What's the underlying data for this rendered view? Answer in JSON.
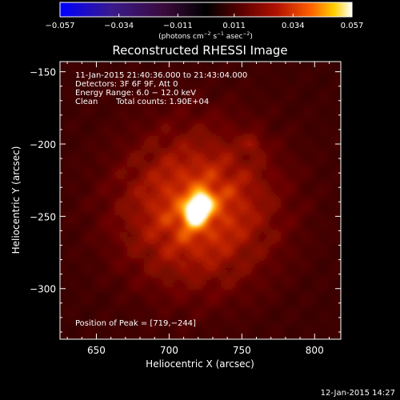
{
  "chart_data": {
    "type": "heatmap",
    "title": "Reconstructed RHESSI Image",
    "xlabel": "Heliocentric X (arcsec)",
    "ylabel": "Heliocentric Y (arcsec)",
    "xlim": [
      625,
      818
    ],
    "ylim": [
      -335,
      -143
    ],
    "x_ticks": [
      650,
      700,
      750,
      800
    ],
    "y_ticks": [
      -150,
      -200,
      -250,
      -300
    ],
    "x_tick_labels": [
      "650",
      "700",
      "750",
      "800"
    ],
    "y_tick_labels": [
      "−150",
      "−200",
      "−250",
      "−300"
    ],
    "colorbar": {
      "min": -0.057,
      "max": 0.057,
      "ticks": [
        -0.057,
        -0.034,
        -0.011,
        0.011,
        0.034,
        0.057
      ],
      "tick_labels": [
        "−0.057",
        "−0.034",
        "−0.011",
        "0.011",
        "0.034",
        "0.057"
      ],
      "units_label": "(photons cm",
      "units_exp1": "−2",
      "units_mid": " s",
      "units_exp2": "−1",
      "units_mid2": " asec",
      "units_exp3": "−2",
      "units_end": ")",
      "colormap": "rhessi-temperature"
    },
    "peak": [
      719,
      -244
    ],
    "sources": [
      {
        "x": 719,
        "y": -244,
        "intensity": 0.057
      },
      {
        "x": 757,
        "y": -199,
        "intensity": 0.012
      }
    ],
    "annotations": {
      "time_range": "11-Jan-2015 21:40:36.000 to 21:43:04.000",
      "detectors": "Detectors: 3F 6F 9F, Att 0",
      "energy": "Energy Range: 6.0 − 12.0 keV",
      "method": "Clean",
      "counts": "Total counts: 1.90E+04",
      "peak_label": "Position of Peak = [719,−244]"
    }
  },
  "footer_date": "12-Jan-2015 14:27"
}
